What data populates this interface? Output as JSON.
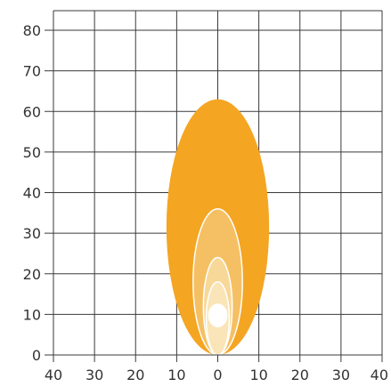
{
  "chart_data": {
    "type": "area",
    "title": "",
    "xlabel": "",
    "ylabel": "",
    "xlim": [
      -40,
      40
    ],
    "ylim": [
      0,
      85
    ],
    "x_ticks": [
      -40,
      -30,
      -20,
      -10,
      0,
      10,
      20,
      30,
      40
    ],
    "x_tick_labels": [
      "40",
      "30",
      "20",
      "10",
      "0",
      "10",
      "20",
      "30",
      "40"
    ],
    "y_ticks": [
      0,
      10,
      20,
      30,
      40,
      50,
      60,
      70,
      80
    ],
    "y_tick_labels": [
      "0",
      "10",
      "20",
      "30",
      "40",
      "50",
      "60",
      "70",
      "80"
    ],
    "grid": true,
    "zones": [
      {
        "half_width": 12.5,
        "y_min": 0,
        "y_max": 63,
        "color": "#F4A522"
      },
      {
        "half_width": 6,
        "y_min": 0,
        "y_max": 36,
        "color": "#F5C063"
      },
      {
        "half_width": 3.5,
        "y_min": 0,
        "y_max": 24,
        "color": "#F8D898"
      },
      {
        "half_width": 2.8,
        "y_min": 0,
        "y_max": 18,
        "color": "#FAE5B8"
      },
      {
        "half_width": 2.2,
        "y_min": 7,
        "y_max": 12.5,
        "color": "#FFFFFF"
      }
    ]
  }
}
